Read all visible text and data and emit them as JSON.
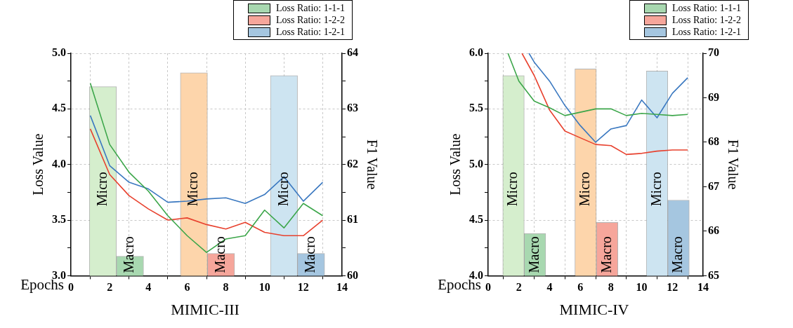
{
  "chart_data": [
    {
      "type": "line",
      "title": "MIMIC-III",
      "xlabel": "Epochs",
      "ylabel": "Loss Value",
      "y2label": "F1 Value",
      "x": [
        1,
        2,
        3,
        4,
        5,
        6,
        7,
        8,
        9,
        10,
        11,
        12,
        13
      ],
      "xlim": [
        0,
        14
      ],
      "xticks": [
        0,
        2,
        4,
        6,
        8,
        10,
        12,
        14
      ],
      "ylim": [
        3.0,
        5.0
      ],
      "yticks": [
        {
          "value": 3.0,
          "label": "3.0"
        },
        {
          "value": 3.25,
          "label": null
        },
        {
          "value": 3.5,
          "label": "3.5"
        },
        {
          "value": 3.75,
          "label": null
        },
        {
          "value": 4.0,
          "label": "4.0"
        },
        {
          "value": 4.25,
          "label": null
        },
        {
          "value": 4.5,
          "label": "4.5"
        },
        {
          "value": 4.75,
          "label": null
        },
        {
          "value": 5.0,
          "label": "5.0"
        }
      ],
      "y2lim": [
        60,
        64
      ],
      "y2ticks": [
        60,
        {
          "value": 60.5,
          "label": null
        },
        61,
        {
          "value": 61.5,
          "label": null
        },
        62,
        {
          "value": 62.5,
          "label": null
        },
        63,
        {
          "value": 63.5,
          "label": null
        },
        64
      ],
      "grid": true,
      "legend": "top right",
      "marker": "none",
      "series": [
        {
          "type": "bar",
          "name": "Loss Ratio: 1-1-1",
          "axis": "y2",
          "x": [
            1.65,
            3.05
          ],
          "values": [
            63.4,
            60.35
          ],
          "color": "#a8d8b0",
          "colors": [
            "#d5eecd",
            "#a8d8b0"
          ]
        },
        {
          "type": "bar",
          "name": "Loss Ratio: 1-2-2",
          "axis": "y2",
          "x": [
            6.35,
            7.75
          ],
          "values": [
            63.65,
            60.4
          ],
          "color": "#f6a69b",
          "colors": [
            "#fdd5ab",
            "#f6a69b"
          ]
        },
        {
          "type": "bar",
          "name": "Loss Ratio: 1-2-1",
          "axis": "y2",
          "x": [
            11.0,
            12.4
          ],
          "values": [
            63.6,
            60.4
          ],
          "color": "#a5c6e0",
          "colors": [
            "#cde4f1",
            "#a5c6e0"
          ]
        },
        {
          "color": "#3ca64a",
          "values": [
            4.73,
            4.18,
            3.93,
            3.76,
            3.54,
            3.36,
            3.21,
            3.33,
            3.36,
            3.59,
            3.43,
            3.65,
            3.54
          ]
        },
        {
          "color": "#e8412e",
          "values": [
            4.32,
            3.91,
            3.72,
            3.6,
            3.5,
            3.52,
            3.46,
            3.42,
            3.48,
            3.39,
            3.36,
            3.36,
            3.5
          ]
        },
        {
          "color": "#3a78c0",
          "values": [
            4.44,
            3.99,
            3.84,
            3.78,
            3.66,
            3.67,
            3.69,
            3.7,
            3.65,
            3.73,
            3.89,
            3.67,
            3.84
          ]
        }
      ],
      "annotations": [
        "Micro",
        "Macro",
        "Micro",
        "Macro",
        "Micro",
        "Macro"
      ]
    },
    {
      "type": "line",
      "title": "MIMIC-IV",
      "xlabel": "Epochs",
      "ylabel": "Loss Value",
      "y2label": "F1 Value",
      "xlim": [
        0,
        14
      ],
      "xticks": [
        0,
        2,
        4,
        6,
        8,
        10,
        12,
        14
      ],
      "ylim": [
        4.0,
        6.0
      ],
      "yticks": [
        {
          "value": 4.0,
          "label": "4.0"
        },
        {
          "value": 4.25,
          "label": null
        },
        {
          "value": 4.5,
          "label": "4.5"
        },
        {
          "value": 4.75,
          "label": null
        },
        {
          "value": 5.0,
          "label": "5.0"
        },
        {
          "value": 5.25,
          "label": null
        },
        {
          "value": 5.5,
          "label": "5.5"
        },
        {
          "value": 5.75,
          "label": null
        },
        {
          "value": 6.0,
          "label": "6.0"
        }
      ],
      "y2lim": [
        65,
        70
      ],
      "y2ticks": [
        65,
        66,
        67,
        68,
        69,
        70
      ],
      "grid": true,
      "legend": "top right",
      "marker": "none",
      "series": [
        {
          "type": "bar",
          "name": "Loss Ratio: 1-1-1",
          "axis": "y2",
          "x": [
            1.65,
            3.05
          ],
          "values": [
            69.5,
            65.95
          ],
          "color": "#a8d8b0",
          "colors": [
            "#d5eecd",
            "#a8d8b0"
          ]
        },
        {
          "type": "bar",
          "name": "Loss Ratio: 1-2-2",
          "axis": "y2",
          "x": [
            6.35,
            7.75
          ],
          "values": [
            69.65,
            66.2
          ],
          "color": "#f6a69b",
          "colors": [
            "#fdd5ab",
            "#f6a69b"
          ]
        },
        {
          "type": "bar",
          "name": "Loss Ratio: 1-2-1",
          "axis": "y2",
          "x": [
            11.0,
            12.4
          ],
          "values": [
            69.6,
            66.7
          ],
          "color": "#a5c6e0",
          "colors": [
            "#cde4f1",
            "#a5c6e0"
          ]
        },
        {
          "color": "#3ca64a",
          "x": [
            1.29,
            2,
            3,
            4,
            5,
            6,
            7,
            8,
            9,
            10,
            11,
            12,
            13
          ],
          "values": [
            6.0,
            5.75,
            5.57,
            5.51,
            5.44,
            5.47,
            5.5,
            5.5,
            5.44,
            5.46,
            5.45,
            5.44,
            5.45
          ]
        },
        {
          "color": "#e8412e",
          "x": [
            2.2,
            3,
            4,
            5,
            6,
            7,
            8,
            9,
            10,
            11,
            12,
            13
          ],
          "values": [
            6.0,
            5.8,
            5.49,
            5.3,
            5.24,
            5.18,
            5.17,
            5.09,
            5.1,
            5.12,
            5.13,
            5.13
          ]
        },
        {
          "color": "#3a78c0",
          "x": [
            2.66,
            3,
            4,
            5,
            6,
            7,
            8,
            9,
            10,
            11,
            12,
            13
          ],
          "values": [
            6.0,
            5.92,
            5.75,
            5.53,
            5.35,
            5.2,
            5.32,
            5.35,
            5.58,
            5.42,
            5.64,
            5.78
          ]
        }
      ],
      "annotations": [
        "Micro",
        "Macro",
        "Micro",
        "Macro",
        "Micro",
        "Macro"
      ]
    }
  ]
}
